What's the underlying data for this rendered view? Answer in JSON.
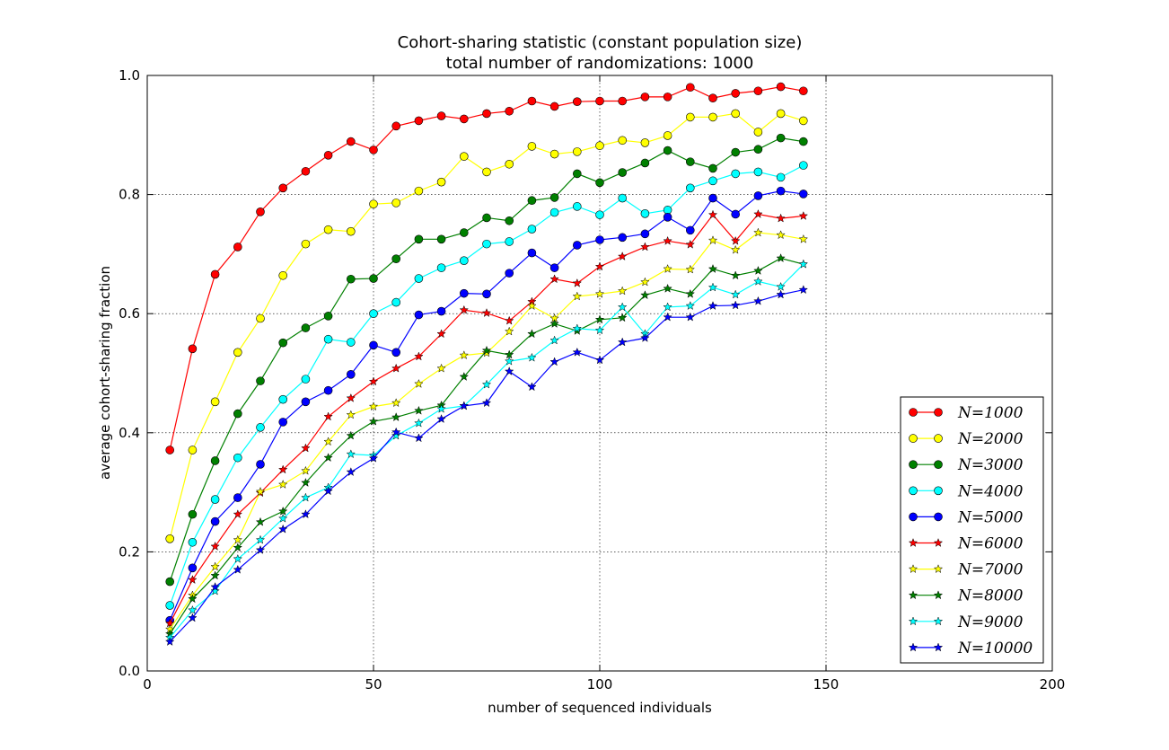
{
  "chart_data": {
    "type": "line",
    "title": "Cohort-sharing statistic (constant population size)",
    "subtitle": "total number of randomizations: 1000",
    "xlabel": "number of sequenced individuals",
    "ylabel": "average cohort-sharing fraction",
    "xlim": [
      0,
      200
    ],
    "ylim": [
      0.0,
      1.0
    ],
    "x_ticks": [
      "0",
      "50",
      "100",
      "150",
      "200"
    ],
    "y_ticks": [
      "0.0",
      "0.2",
      "0.4",
      "0.6",
      "0.8",
      "1.0"
    ],
    "grid": true,
    "legend_position": "lower-right",
    "x": [
      5,
      10,
      15,
      20,
      25,
      30,
      35,
      40,
      45,
      50,
      55,
      60,
      65,
      70,
      75,
      80,
      85,
      90,
      95,
      100,
      105,
      110,
      115,
      120,
      125,
      130,
      135,
      140,
      145
    ],
    "series": [
      {
        "name": "N=1000",
        "color": "#ff0000",
        "marker": "circle",
        "values": [
          0.371,
          0.541,
          0.666,
          0.712,
          0.771,
          0.811,
          0.839,
          0.866,
          0.889,
          0.875,
          0.915,
          0.924,
          0.932,
          0.927,
          0.936,
          0.94,
          0.957,
          0.948,
          0.956,
          0.957,
          0.957,
          0.964,
          0.964,
          0.98,
          0.962,
          0.97,
          0.974,
          0.981,
          0.974
        ]
      },
      {
        "name": "N=2000",
        "color": "#ffff00",
        "marker": "circle",
        "values": [
          0.222,
          0.371,
          0.452,
          0.535,
          0.592,
          0.664,
          0.717,
          0.741,
          0.738,
          0.784,
          0.786,
          0.806,
          0.821,
          0.864,
          0.838,
          0.851,
          0.881,
          0.868,
          0.872,
          0.882,
          0.891,
          0.887,
          0.899,
          0.93,
          0.93,
          0.936,
          0.905,
          0.936,
          0.924
        ]
      },
      {
        "name": "N=3000",
        "color": "#008000",
        "marker": "circle",
        "values": [
          0.15,
          0.263,
          0.353,
          0.432,
          0.487,
          0.551,
          0.576,
          0.596,
          0.658,
          0.659,
          0.692,
          0.725,
          0.725,
          0.736,
          0.761,
          0.756,
          0.79,
          0.795,
          0.835,
          0.82,
          0.837,
          0.853,
          0.874,
          0.855,
          0.844,
          0.871,
          0.876,
          0.895,
          0.889
        ]
      },
      {
        "name": "N=4000",
        "color": "#00ffff",
        "marker": "circle",
        "values": [
          0.11,
          0.216,
          0.288,
          0.358,
          0.409,
          0.456,
          0.49,
          0.557,
          0.552,
          0.6,
          0.619,
          0.659,
          0.677,
          0.689,
          0.717,
          0.721,
          0.742,
          0.77,
          0.78,
          0.766,
          0.794,
          0.768,
          0.774,
          0.811,
          0.823,
          0.835,
          0.838,
          0.829,
          0.849
        ]
      },
      {
        "name": "N=5000",
        "color": "#0000ff",
        "marker": "circle",
        "values": [
          0.085,
          0.173,
          0.251,
          0.291,
          0.347,
          0.418,
          0.452,
          0.471,
          0.498,
          0.547,
          0.535,
          0.598,
          0.604,
          0.634,
          0.633,
          0.668,
          0.702,
          0.677,
          0.715,
          0.724,
          0.728,
          0.734,
          0.762,
          0.74,
          0.794,
          0.767,
          0.798,
          0.806,
          0.801
        ]
      },
      {
        "name": "N=6000",
        "color": "#ff0000",
        "marker": "star",
        "values": [
          0.08,
          0.153,
          0.209,
          0.263,
          0.299,
          0.338,
          0.374,
          0.427,
          0.458,
          0.486,
          0.508,
          0.528,
          0.566,
          0.606,
          0.601,
          0.588,
          0.62,
          0.658,
          0.651,
          0.679,
          0.696,
          0.712,
          0.722,
          0.716,
          0.766,
          0.722,
          0.767,
          0.76,
          0.764
        ]
      },
      {
        "name": "N=7000",
        "color": "#ffff00",
        "marker": "star",
        "values": [
          0.07,
          0.127,
          0.175,
          0.22,
          0.301,
          0.313,
          0.336,
          0.385,
          0.43,
          0.444,
          0.45,
          0.482,
          0.508,
          0.53,
          0.534,
          0.57,
          0.613,
          0.592,
          0.629,
          0.633,
          0.638,
          0.653,
          0.675,
          0.674,
          0.723,
          0.707,
          0.736,
          0.732,
          0.725
        ]
      },
      {
        "name": "N=8000",
        "color": "#008000",
        "marker": "star",
        "values": [
          0.062,
          0.121,
          0.16,
          0.207,
          0.25,
          0.268,
          0.316,
          0.358,
          0.395,
          0.419,
          0.426,
          0.437,
          0.446,
          0.494,
          0.538,
          0.531,
          0.566,
          0.583,
          0.571,
          0.59,
          0.593,
          0.631,
          0.642,
          0.633,
          0.675,
          0.664,
          0.672,
          0.693,
          0.683
        ]
      },
      {
        "name": "N=9000",
        "color": "#00ffff",
        "marker": "star",
        "values": [
          0.056,
          0.102,
          0.134,
          0.188,
          0.22,
          0.256,
          0.291,
          0.308,
          0.364,
          0.362,
          0.395,
          0.416,
          0.44,
          0.445,
          0.481,
          0.52,
          0.526,
          0.555,
          0.575,
          0.572,
          0.611,
          0.566,
          0.611,
          0.613,
          0.644,
          0.632,
          0.654,
          0.645,
          0.683
        ]
      },
      {
        "name": "N=10000",
        "color": "#0000ff",
        "marker": "star",
        "values": [
          0.049,
          0.089,
          0.141,
          0.17,
          0.203,
          0.238,
          0.263,
          0.302,
          0.334,
          0.357,
          0.401,
          0.391,
          0.423,
          0.445,
          0.45,
          0.503,
          0.477,
          0.519,
          0.535,
          0.522,
          0.552,
          0.559,
          0.594,
          0.594,
          0.613,
          0.614,
          0.621,
          0.632,
          0.64
        ]
      }
    ]
  }
}
